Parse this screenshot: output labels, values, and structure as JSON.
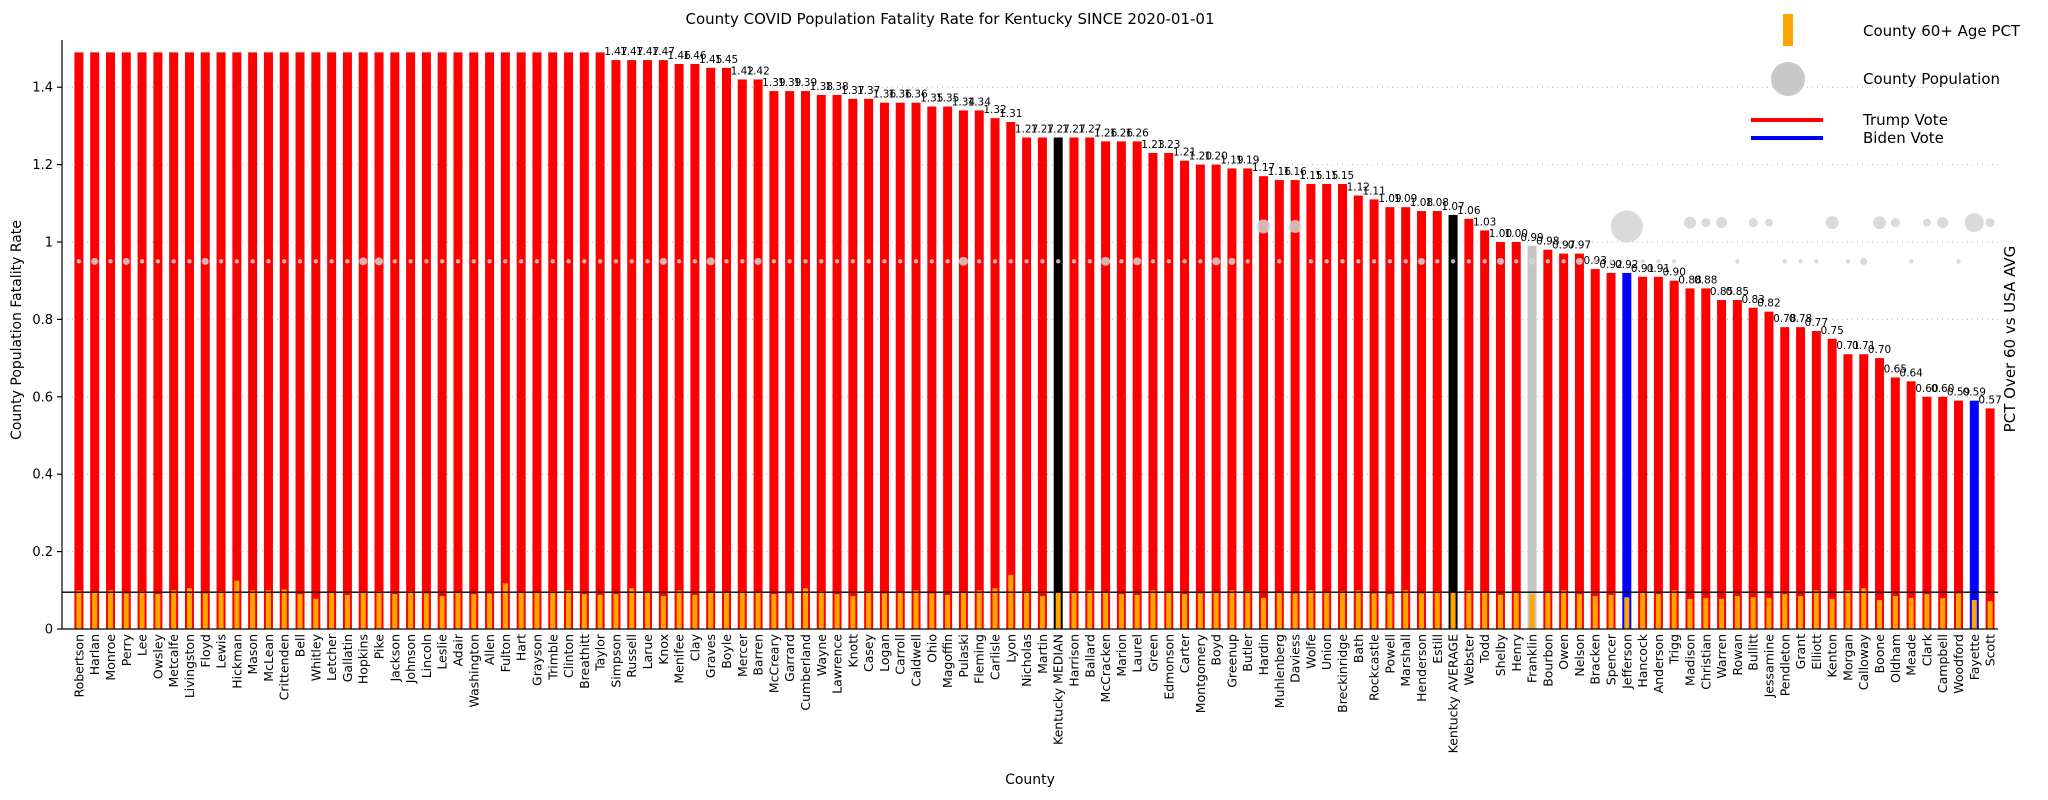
{
  "title": "County COVID Population Fatality Rate for Kentucky SINCE 2020-01-01",
  "axes": {
    "ylabel_left": "County Population Fatality Rate",
    "ylabel_right": "PCT Over 60 vs USA AVG",
    "xlabel": "County",
    "yticks": [
      0,
      0.2,
      0.4,
      0.6,
      0.8,
      1,
      1.2,
      1.4
    ]
  },
  "legend": {
    "age_label": "County 60+ Age PCT",
    "population_label": "County Population",
    "trump_label": "Trump Vote",
    "biden_label": "Biden Vote"
  },
  "colors": {
    "trump": "#fe0000",
    "biden": "#0000fe",
    "statistic": "#000000",
    "neutral": "#c4c4c4",
    "age": "#ffa500",
    "population_bubble": "#d4d4d4",
    "gridline": "#b8b8b8",
    "ref_line": "#000000"
  },
  "chart_data": {
    "type": "bar",
    "title": "County COVID Population Fatality Rate for Kentucky SINCE 2020-01-01",
    "xlabel": "County",
    "ylabel": "County Population Fatality Rate",
    "ylabel_right": "PCT Over 60 vs USA AVG",
    "ylim": [
      0,
      1.52
    ],
    "grid": "dotted-horizontal",
    "legend_position": "upper-right",
    "note": "bars with value 1.49 are clipped at the top of the axis and show no value label; labels shown for values <= 1.48",
    "label_max": 1.48,
    "categories": [
      "Robertson",
      "Harlan",
      "Monroe",
      "Perry",
      "Lee",
      "Owsley",
      "Metcalfe",
      "Livingston",
      "Floyd",
      "Lewis",
      "Hickman",
      "Mason",
      "McLean",
      "Crittenden",
      "Bell",
      "Whitley",
      "Letcher",
      "Gallatin",
      "Hopkins",
      "Pike",
      "Jackson",
      "Johnson",
      "Lincoln",
      "Leslie",
      "Adair",
      "Washington",
      "Allen",
      "Fulton",
      "Hart",
      "Grayson",
      "Trimble",
      "Clinton",
      "Breathitt",
      "Taylor",
      "Simpson",
      "Russell",
      "Larue",
      "Knox",
      "Menifee",
      "Clay",
      "Graves",
      "Boyle",
      "Mercer",
      "Barren",
      "McCreary",
      "Garrard",
      "Cumberland",
      "Wayne",
      "Lawrence",
      "Knott",
      "Casey",
      "Logan",
      "Carroll",
      "Caldwell",
      "Ohio",
      "Magoffin",
      "Pulaski",
      "Fleming",
      "Carlisle",
      "Lyon",
      "Nicholas",
      "Martin",
      "Kentucky MEDIAN",
      "Harrison",
      "Ballard",
      "McCracken",
      "Marion",
      "Laurel",
      "Green",
      "Edmonson",
      "Carter",
      "Montgomery",
      "Boyd",
      "Greenup",
      "Butler",
      "Hardin",
      "Muhlenberg",
      "Daviess",
      "Wolfe",
      "Union",
      "Breckinridge",
      "Bath",
      "Rockcastle",
      "Powell",
      "Marshall",
      "Henderson",
      "Estill",
      "Kentucky AVERAGE",
      "Webster",
      "Todd",
      "Shelby",
      "Henry",
      "Franklin",
      "Bourbon",
      "Owen",
      "Nelson",
      "Bracken",
      "Spencer",
      "Jefferson",
      "Hancock",
      "Anderson",
      "Trigg",
      "Madison",
      "Christian",
      "Warren",
      "Rowan",
      "Bullitt",
      "Jessamine",
      "Pendleton",
      "Grant",
      "Elliott",
      "Kenton",
      "Morgan",
      "Calloway",
      "Boone",
      "Oldham",
      "Meade",
      "Clark",
      "Campbell",
      "Woodford",
      "Fayette",
      "Scott"
    ],
    "values": [
      1.49,
      1.49,
      1.49,
      1.49,
      1.49,
      1.49,
      1.49,
      1.49,
      1.49,
      1.49,
      1.49,
      1.49,
      1.49,
      1.49,
      1.49,
      1.49,
      1.49,
      1.49,
      1.49,
      1.49,
      1.49,
      1.49,
      1.49,
      1.49,
      1.49,
      1.49,
      1.49,
      1.49,
      1.49,
      1.49,
      1.49,
      1.49,
      1.49,
      1.49,
      1.47,
      1.47,
      1.47,
      1.47,
      1.46,
      1.46,
      1.45,
      1.45,
      1.42,
      1.42,
      1.39,
      1.39,
      1.39,
      1.38,
      1.38,
      1.37,
      1.37,
      1.36,
      1.36,
      1.36,
      1.35,
      1.35,
      1.34,
      1.34,
      1.32,
      1.31,
      1.27,
      1.27,
      1.27,
      1.27,
      1.27,
      1.26,
      1.26,
      1.26,
      1.23,
      1.23,
      1.21,
      1.2,
      1.2,
      1.19,
      1.19,
      1.17,
      1.16,
      1.16,
      1.15,
      1.15,
      1.15,
      1.12,
      1.11,
      1.09,
      1.09,
      1.08,
      1.08,
      1.07,
      1.06,
      1.03,
      1.0,
      1.0,
      0.99,
      0.98,
      0.97,
      0.97,
      0.93,
      0.92,
      0.92,
      0.91,
      0.91,
      0.9,
      0.88,
      0.88,
      0.85,
      0.85,
      0.83,
      0.82,
      0.78,
      0.78,
      0.77,
      0.75,
      0.71,
      0.71,
      0.7,
      0.65,
      0.64,
      0.6,
      0.6,
      0.59,
      0.59,
      0.57
    ],
    "bar_color_overrides": {
      "62": "statistic",
      "87": "statistic",
      "92": "neutral",
      "98": "biden",
      "120": "biden"
    },
    "age_pct_values": [
      0.1,
      0.095,
      0.1,
      0.092,
      0.098,
      0.09,
      0.1,
      0.105,
      0.092,
      0.098,
      0.125,
      0.1,
      0.1,
      0.102,
      0.09,
      0.078,
      0.095,
      0.088,
      0.095,
      0.098,
      0.09,
      0.098,
      0.092,
      0.085,
      0.095,
      0.09,
      0.092,
      0.118,
      0.095,
      0.095,
      0.098,
      0.1,
      0.09,
      0.088,
      0.09,
      0.105,
      0.095,
      0.085,
      0.1,
      0.088,
      0.095,
      0.095,
      0.098,
      0.095,
      0.09,
      0.092,
      0.105,
      0.098,
      0.09,
      0.085,
      0.098,
      0.092,
      0.095,
      0.1,
      0.092,
      0.088,
      0.095,
      0.1,
      0.105,
      0.14,
      0.098,
      0.085,
      0.095,
      0.095,
      0.1,
      0.095,
      0.09,
      0.088,
      0.1,
      0.095,
      0.09,
      0.092,
      0.095,
      0.1,
      0.098,
      0.08,
      0.095,
      0.092,
      0.1,
      0.095,
      0.098,
      0.1,
      0.092,
      0.09,
      0.1,
      0.092,
      0.098,
      0.095,
      0.1,
      0.095,
      0.088,
      0.095,
      0.09,
      0.095,
      0.1,
      0.09,
      0.085,
      0.088,
      0.082,
      0.095,
      0.09,
      0.1,
      0.078,
      0.08,
      0.078,
      0.085,
      0.082,
      0.08,
      0.09,
      0.085,
      0.1,
      0.078,
      0.1,
      0.105,
      0.075,
      0.085,
      0.08,
      0.09,
      0.08,
      0.092,
      0.075,
      0.072
    ],
    "ref_line_value": 0.095,
    "population_bubbles": {
      "default": {
        "y": 0.95,
        "r": 2.2
      },
      "overrides": {
        "1": [
          0.95,
          3.5
        ],
        "3": [
          0.95,
          3.5
        ],
        "8": [
          0.95,
          3.5
        ],
        "18": [
          0.95,
          4
        ],
        "19": [
          0.95,
          4
        ],
        "37": [
          0.95,
          3.5
        ],
        "40": [
          0.95,
          4
        ],
        "43": [
          0.95,
          3.5
        ],
        "56": [
          0.95,
          4.5
        ],
        "65": [
          0.95,
          4.5
        ],
        "67": [
          0.95,
          4
        ],
        "72": [
          0.95,
          4
        ],
        "73": [
          0.95,
          3.5
        ],
        "75": [
          1.04,
          7
        ],
        "77": [
          1.04,
          6.5
        ],
        "85": [
          0.95,
          3.5
        ],
        "90": [
          0.95,
          3.5
        ],
        "92": [
          0.95,
          3.5
        ],
        "95": [
          0.95,
          3.5
        ],
        "98": [
          1.04,
          16
        ],
        "102": [
          1.05,
          6
        ],
        "103": [
          1.05,
          4.5
        ],
        "104": [
          1.05,
          5.5
        ],
        "106": [
          1.05,
          4.5
        ],
        "107": [
          1.05,
          4
        ],
        "111": [
          1.05,
          6.5
        ],
        "113": [
          0.95,
          3.5
        ],
        "114": [
          1.05,
          6.5
        ],
        "115": [
          1.05,
          4.5
        ],
        "117": [
          1.05,
          4
        ],
        "118": [
          1.05,
          5.5
        ],
        "120": [
          1.05,
          9.5
        ],
        "121": [
          1.05,
          4.5
        ]
      }
    }
  }
}
